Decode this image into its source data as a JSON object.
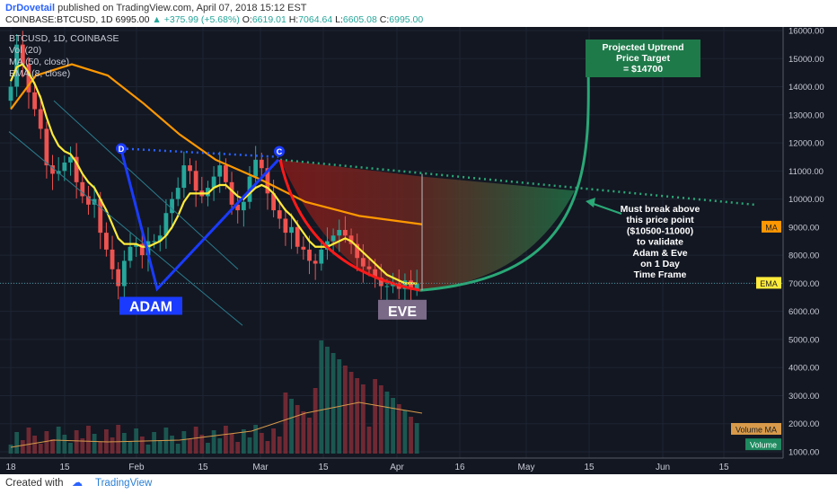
{
  "header": {
    "author": "DrDovetail",
    "published": "published on TradingView.com, April 07, 2018 15:12 EST",
    "symbol": "COINBASE:BTCUSD, 1D",
    "last": "6995.00",
    "up_arrow": "▲",
    "change": "+375.99 (+5.68%)",
    "o_label": "O:",
    "o": "6619.01",
    "h_label": "H:",
    "h": "7064.64",
    "l_label": "L:",
    "l": "6605.08",
    "c_label": "C:",
    "c": "6995.00"
  },
  "legend": {
    "symbol": "BTCUSD, 1D, COINBASE",
    "vol": "Vol (20)",
    "ma": "MA (50, close)",
    "ema": "EMA (8, close)"
  },
  "annotations": {
    "adam": "ADAM",
    "eve": "EVE",
    "point_d": "D",
    "point_c": "C",
    "target": [
      "Projected Uptrend",
      "Price Target",
      "= $14700"
    ],
    "note": [
      "Must break above",
      "this price point",
      "($10500-11000)",
      "to validate",
      "Adam & Eve",
      "on 1 Day",
      "Time Frame"
    ]
  },
  "price_tags": {
    "ma": "MA",
    "ema": "EMA",
    "volume_ma": "Volume MA",
    "volume": "Volume"
  },
  "footer": {
    "created": "Created with",
    "brand": "TradingView"
  },
  "colors": {
    "background": "#131722",
    "up": "#26a69a",
    "down": "#ef5350",
    "ema": "#ffeb3b",
    "ma": "#ff9800",
    "adam": "#1a3bff",
    "eve": "#ff1a1a",
    "projection": "#2aa876"
  },
  "chart_data": {
    "type": "candlestick",
    "y_axis_ticks": [
      "16000.00",
      "15000.00",
      "14000.00",
      "13000.00",
      "12000.00",
      "11000.00",
      "10000.00",
      "9000.00",
      "8000.00",
      "7000.00",
      "6000.00",
      "5000.00",
      "4000.00",
      "3000.00",
      "2000.00",
      "1000.00"
    ],
    "x_axis_ticks": [
      "18",
      "15",
      "Feb",
      "15",
      "Mar",
      "15",
      "Apr",
      "16",
      "May",
      "15",
      "Jun",
      "15"
    ],
    "ylim": [
      700,
      16300
    ],
    "ma_last": "9000.00",
    "ema_last": "7000.00",
    "close": [
      14000,
      15500,
      14800,
      13800,
      13200,
      12500,
      11200,
      10900,
      11000,
      11300,
      11500,
      10600,
      10100,
      9800,
      10000,
      8800,
      8200,
      7500,
      6900,
      7800,
      8300,
      8400,
      8000,
      8500,
      8500,
      8700,
      9500,
      10000,
      10400,
      11200,
      11000,
      10300,
      10100,
      10400,
      10800,
      11200,
      10600,
      9800,
      9600,
      9900,
      10800,
      11400,
      11100,
      10200,
      9600,
      9300,
      8800,
      9000,
      8300,
      8200,
      7800,
      7700,
      8200,
      8500,
      8700,
      8900,
      8700,
      8400,
      7900,
      7600,
      7500,
      7200,
      6900,
      6900,
      7000,
      6800,
      7100,
      6800,
      6995
    ],
    "ema_8": [
      14200,
      14700,
      14800,
      14500,
      14100,
      13600,
      12900,
      12300,
      11900,
      11700,
      11600,
      11300,
      10900,
      10600,
      10400,
      10000,
      9600,
      9100,
      8600,
      8400,
      8400,
      8400,
      8300,
      8300,
      8400,
      8500,
      8700,
      9000,
      9400,
      9900,
      10200,
      10200,
      10200,
      10200,
      10400,
      10500,
      10500,
      10300,
      10100,
      10000,
      10200,
      10400,
      10500,
      10400,
      10200,
      9900,
      9600,
      9400,
      9100,
      8800,
      8500,
      8300,
      8300,
      8300,
      8400,
      8500,
      8600,
      8500,
      8300,
      8100,
      7900,
      7700,
      7500,
      7300,
      7200,
      7100,
      7000,
      7000,
      6995
    ],
    "ma_50_last": 9000,
    "volume_last": "Volume",
    "projection_target": 14700,
    "breakout_zone": [
      10500,
      11000
    ]
  }
}
